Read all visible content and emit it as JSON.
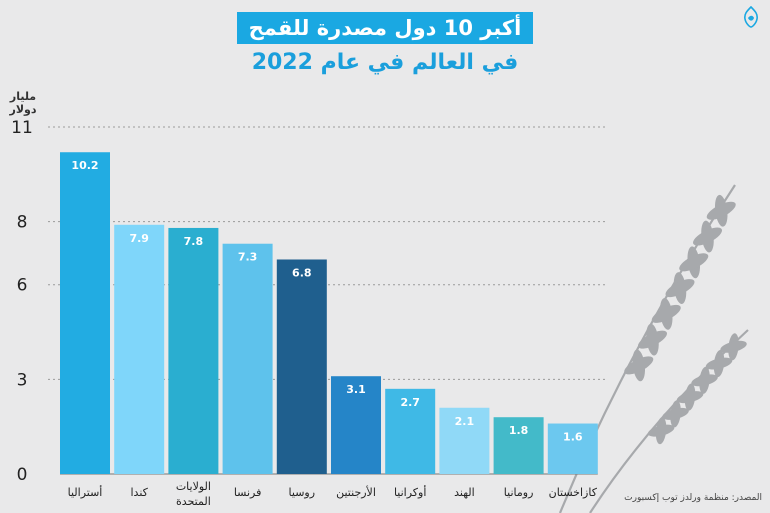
{
  "title": {
    "line1": "أكبر 10 دول مصدرة للقمح",
    "line2": "في العالم في عام 2022"
  },
  "unit_label": "مليار دولار",
  "source": "المصدر: منظمة ورلدز توب إكسبورت",
  "logo_icon": "al-jazeera-logo-icon",
  "colors": {
    "title_bg": "#1aa8e2",
    "title2_text": "#1a9fdc",
    "background": "#e9e9ea",
    "grid": "#9a9a9a"
  },
  "chart_data": {
    "type": "bar",
    "title": "أكبر 10 دول مصدرة للقمح في العالم في عام 2022",
    "ylabel": "مليار دولار",
    "xlabel": "",
    "ylim": [
      0,
      11
    ],
    "yticks": [
      0,
      3,
      6,
      8,
      11
    ],
    "grid": true,
    "categories": [
      "أستراليا",
      "كندا",
      "الولايات المتحدة",
      "فرنسا",
      "روسيا",
      "الأرجنتين",
      "أوكرانيا",
      "الهند",
      "رومانيا",
      "كازاخستان"
    ],
    "values": [
      10.2,
      7.9,
      7.8,
      7.3,
      6.8,
      3.1,
      2.7,
      2.1,
      1.8,
      1.6
    ],
    "value_labels": [
      "10.2",
      "7.9",
      "7.8",
      "7.3",
      "6.8",
      "3.1",
      "2.7",
      "2.1",
      "1.8",
      "1.6"
    ],
    "bar_colors": [
      "#22ace2",
      "#7fd6fa",
      "#2aaed0",
      "#5ec2ec",
      "#1f5f8e",
      "#2585c8",
      "#3fb9e6",
      "#90d9f7",
      "#43bac9",
      "#6cc8ef"
    ]
  }
}
